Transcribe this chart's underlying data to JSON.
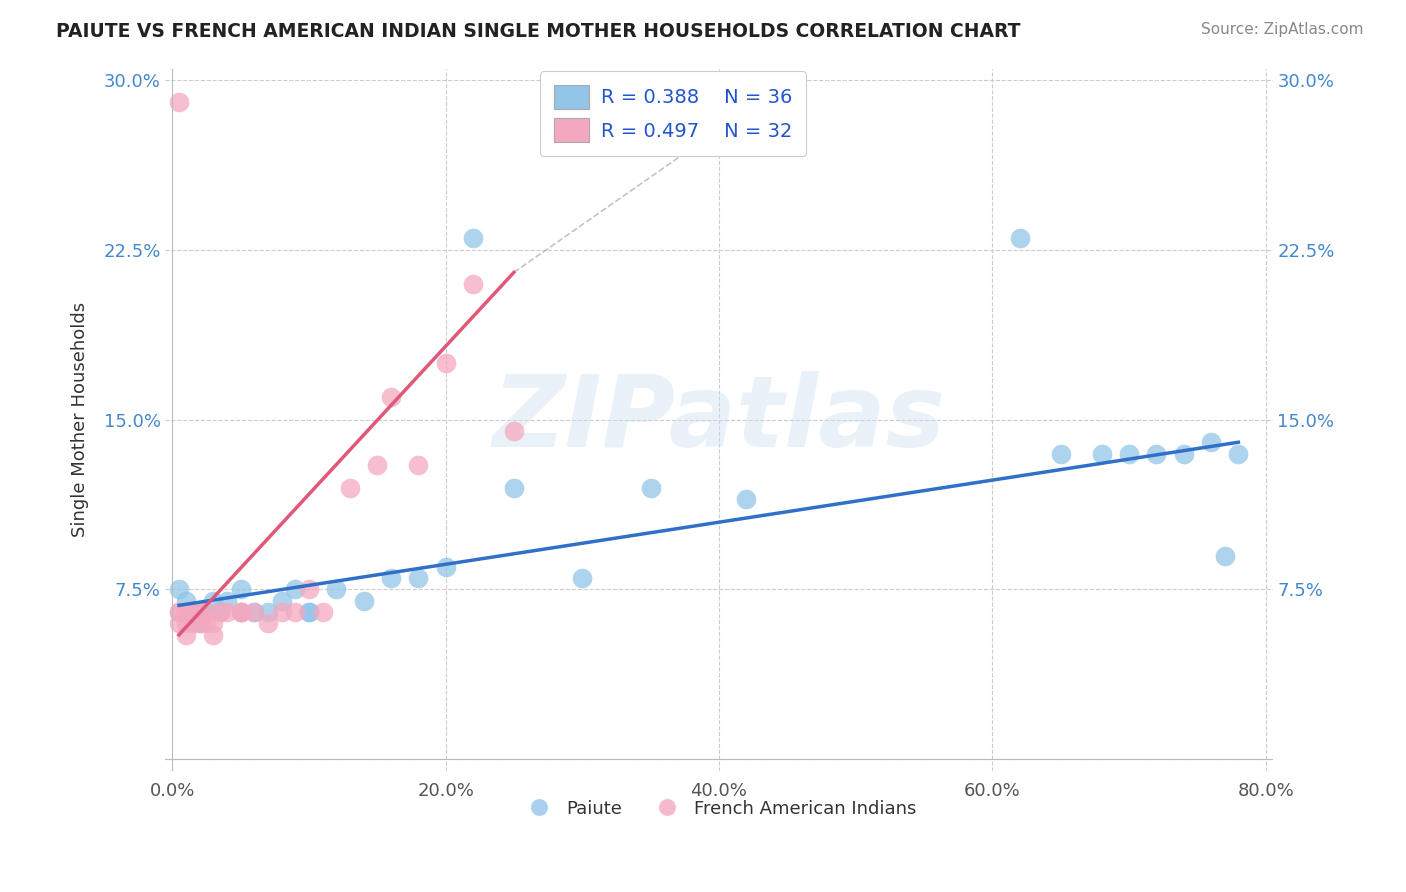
{
  "title": "PAIUTE VS FRENCH AMERICAN INDIAN SINGLE MOTHER HOUSEHOLDS CORRELATION CHART",
  "source": "Source: ZipAtlas.com",
  "ylabel": "Single Mother Households",
  "xlabel": "",
  "xlim": [
    -0.005,
    0.805
  ],
  "ylim": [
    -0.005,
    0.305
  ],
  "xticks": [
    0.0,
    0.2,
    0.4,
    0.6,
    0.8
  ],
  "yticks": [
    0.0,
    0.075,
    0.15,
    0.225,
    0.3
  ],
  "xticklabels": [
    "0.0%",
    "20.0%",
    "40.0%",
    "60.0%",
    "80.0%"
  ],
  "yticklabels": [
    "",
    "7.5%",
    "15.0%",
    "22.5%",
    "30.0%"
  ],
  "paiute_R": 0.388,
  "paiute_N": 36,
  "french_R": 0.497,
  "french_N": 32,
  "paiute_color": "#92c5e8",
  "french_color": "#f4a8bf",
  "paiute_line_color": "#3070c8",
  "french_line_color": "#e05878",
  "legend_text_color": "#2255cc",
  "background_color": "#ffffff",
  "watermark_text": "ZIPatlas",
  "paiute_x": [
    0.005,
    0.01,
    0.015,
    0.02,
    0.02,
    0.025,
    0.03,
    0.035,
    0.04,
    0.05,
    0.05,
    0.06,
    0.07,
    0.08,
    0.09,
    0.1,
    0.1,
    0.12,
    0.14,
    0.16,
    0.18,
    0.2,
    0.22,
    0.25,
    0.3,
    0.35,
    0.42,
    0.62,
    0.65,
    0.68,
    0.7,
    0.72,
    0.74,
    0.76,
    0.77,
    0.78
  ],
  "paiute_y": [
    0.075,
    0.07,
    0.065,
    0.065,
    0.06,
    0.065,
    0.07,
    0.065,
    0.07,
    0.075,
    0.065,
    0.065,
    0.065,
    0.07,
    0.075,
    0.065,
    0.065,
    0.075,
    0.07,
    0.08,
    0.08,
    0.085,
    0.23,
    0.12,
    0.08,
    0.12,
    0.115,
    0.23,
    0.135,
    0.135,
    0.135,
    0.135,
    0.135,
    0.14,
    0.09,
    0.135
  ],
  "french_x": [
    0.005,
    0.005,
    0.005,
    0.01,
    0.01,
    0.01,
    0.015,
    0.015,
    0.02,
    0.02,
    0.025,
    0.025,
    0.03,
    0.03,
    0.035,
    0.04,
    0.05,
    0.05,
    0.06,
    0.07,
    0.08,
    0.09,
    0.1,
    0.11,
    0.13,
    0.15,
    0.16,
    0.18,
    0.2,
    0.22,
    0.25,
    0.005
  ],
  "french_y": [
    0.065,
    0.065,
    0.06,
    0.065,
    0.06,
    0.055,
    0.065,
    0.06,
    0.065,
    0.06,
    0.065,
    0.06,
    0.06,
    0.055,
    0.065,
    0.065,
    0.065,
    0.065,
    0.065,
    0.06,
    0.065,
    0.065,
    0.075,
    0.065,
    0.12,
    0.13,
    0.16,
    0.13,
    0.175,
    0.21,
    0.145,
    0.29
  ],
  "paiute_line_x": [
    0.005,
    0.78
  ],
  "paiute_line_y": [
    0.068,
    0.14
  ],
  "french_line_x": [
    0.005,
    0.25
  ],
  "french_line_y": [
    0.055,
    0.215
  ]
}
